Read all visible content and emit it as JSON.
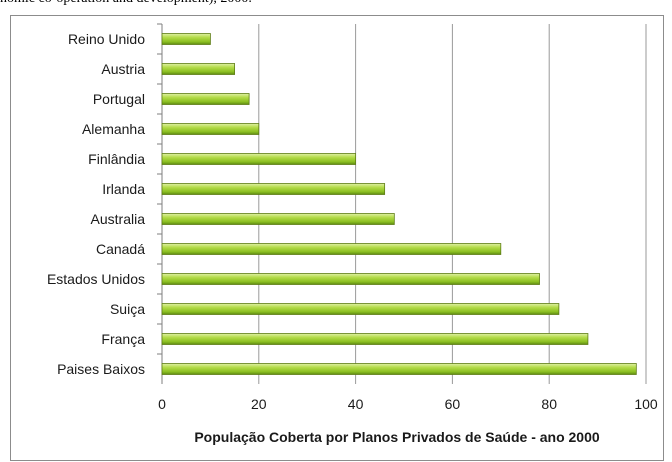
{
  "caption": "nomic co-operation and development), 2000.",
  "chart_data": {
    "type": "bar",
    "orientation": "horizontal",
    "categories": [
      "Reino Unido",
      "Austria",
      "Portugal",
      "Alemanha",
      "Finlândia",
      "Irlanda",
      "Australia",
      "Canadá",
      "Estados Unidos",
      "Suiça",
      "França",
      "Paises Baixos"
    ],
    "values": [
      10,
      15,
      18,
      20,
      40,
      46,
      48,
      70,
      78,
      82,
      88,
      98
    ],
    "xlabel": "População Coberta por Planos Privados de Saúde - ano 2000",
    "ylabel": "",
    "xlim": [
      0,
      100
    ],
    "xticks": [
      "0",
      "20",
      "40",
      "60",
      "80",
      "100"
    ],
    "grid": "vertical",
    "legend": "none",
    "bar_color": "#9ACD32",
    "bar_edge_color": "#5E7D14"
  }
}
